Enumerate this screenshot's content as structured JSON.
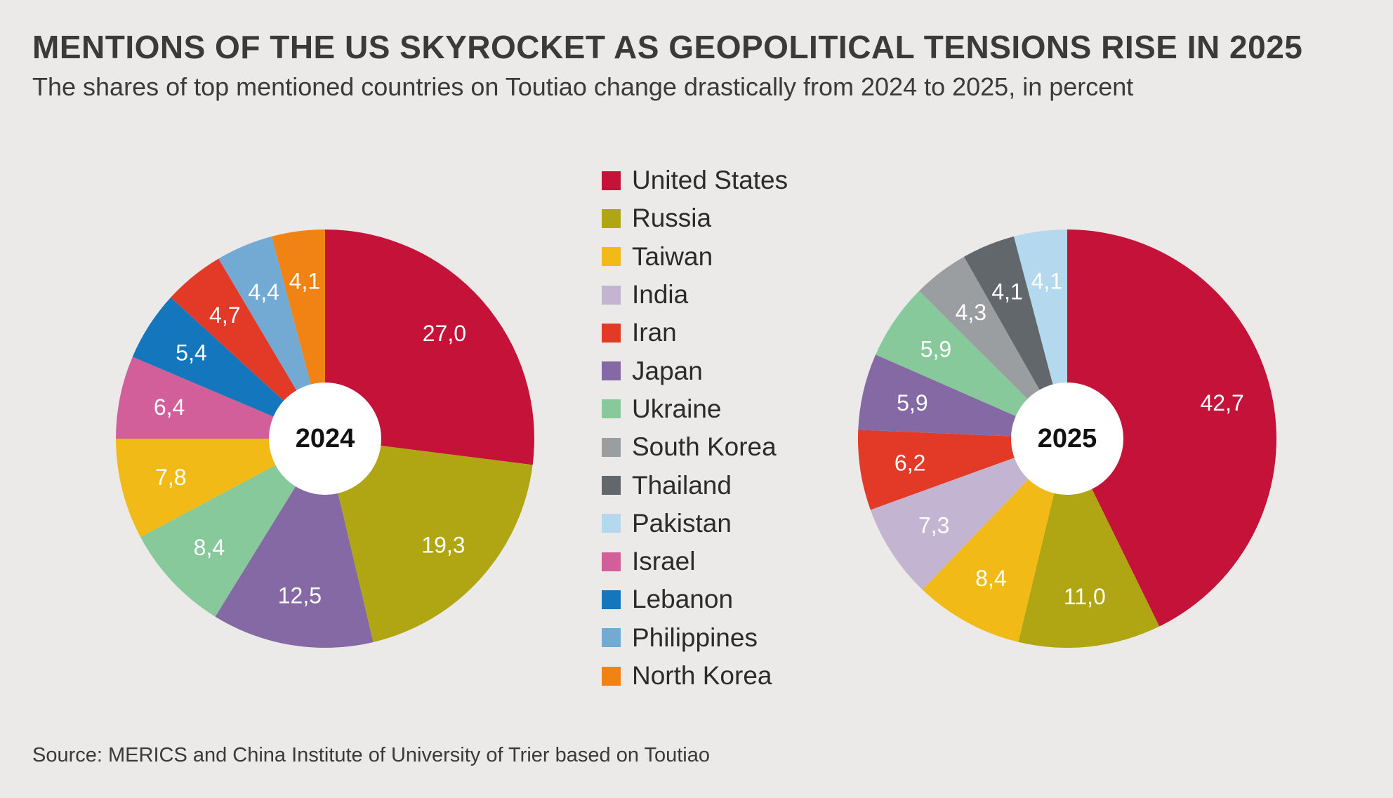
{
  "title": "MENTIONS OF THE US SKYROCKET AS GEOPOLITICAL TENSIONS RISE IN 2025",
  "subtitle": "The shares of top mentioned countries on Toutiao change drastically from 2024 to 2025, in percent",
  "source": "Source: MERICS and China Institute of University of Trier based on Toutiao",
  "legend": [
    {
      "label": "United States",
      "color": "#C41239"
    },
    {
      "label": "Russia",
      "color": "#B0A614"
    },
    {
      "label": "Taiwan",
      "color": "#F2BA16"
    },
    {
      "label": "India",
      "color": "#C3B4D1"
    },
    {
      "label": "Iran",
      "color": "#E33A28"
    },
    {
      "label": "Japan",
      "color": "#8569A5"
    },
    {
      "label": "Ukraine",
      "color": "#88C99C"
    },
    {
      "label": "South Korea",
      "color": "#9A9EA1"
    },
    {
      "label": "Thailand",
      "color": "#62676B"
    },
    {
      "label": "Pakistan",
      "color": "#B4D8EE"
    },
    {
      "label": "Israel",
      "color": "#D35F9A"
    },
    {
      "label": "Lebanon",
      "color": "#1477BD"
    },
    {
      "label": "Philippines",
      "color": "#73AAD4"
    },
    {
      "label": "North Korea",
      "color": "#F08314"
    }
  ],
  "chart_data": [
    {
      "type": "pie",
      "title": "2024",
      "slices": [
        {
          "name": "United States",
          "value": 27.0,
          "label": "27,0",
          "color": "#C41239"
        },
        {
          "name": "Russia",
          "value": 19.3,
          "label": "19,3",
          "color": "#B0A614"
        },
        {
          "name": "Japan",
          "value": 12.5,
          "label": "12,5",
          "color": "#8569A5"
        },
        {
          "name": "Ukraine",
          "value": 8.4,
          "label": "8,4",
          "color": "#88C99C"
        },
        {
          "name": "Taiwan",
          "value": 7.8,
          "label": "7,8",
          "color": "#F2BA16"
        },
        {
          "name": "Israel",
          "value": 6.4,
          "label": "6,4",
          "color": "#D35F9A"
        },
        {
          "name": "Lebanon",
          "value": 5.4,
          "label": "5,4",
          "color": "#1477BD"
        },
        {
          "name": "Iran",
          "value": 4.7,
          "label": "4,7",
          "color": "#E33A28"
        },
        {
          "name": "Philippines",
          "value": 4.4,
          "label": "4,4",
          "color": "#73AAD4"
        },
        {
          "name": "North Korea",
          "value": 4.1,
          "label": "4,1",
          "color": "#F08314"
        }
      ]
    },
    {
      "type": "pie",
      "title": "2025",
      "slices": [
        {
          "name": "United States",
          "value": 42.7,
          "label": "42,7",
          "color": "#C41239"
        },
        {
          "name": "Russia",
          "value": 11.0,
          "label": "11,0",
          "color": "#B0A614"
        },
        {
          "name": "Taiwan",
          "value": 8.4,
          "label": "8,4",
          "color": "#F2BA16"
        },
        {
          "name": "India",
          "value": 7.3,
          "label": "7,3",
          "color": "#C3B4D1"
        },
        {
          "name": "Iran",
          "value": 6.2,
          "label": "6,2",
          "color": "#E33A28"
        },
        {
          "name": "Japan",
          "value": 5.9,
          "label": "5,9",
          "color": "#8569A5"
        },
        {
          "name": "Ukraine",
          "value": 5.9,
          "label": "5,9",
          "color": "#88C99C"
        },
        {
          "name": "South Korea",
          "value": 4.3,
          "label": "4,3",
          "color": "#9A9EA1"
        },
        {
          "name": "Thailand",
          "value": 4.1,
          "label": "4,1",
          "color": "#62676B"
        },
        {
          "name": "Pakistan",
          "value": 4.1,
          "label": "4,1",
          "color": "#B4D8EE"
        }
      ]
    }
  ]
}
